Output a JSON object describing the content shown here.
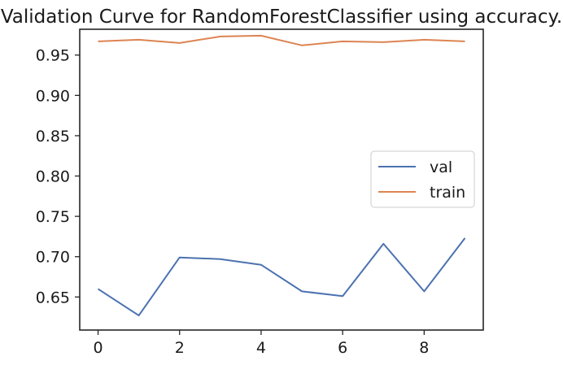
{
  "chart_data": {
    "type": "line",
    "title": "Validation Curve for RandomForestClassifier using accuracy.",
    "xlabel": "",
    "ylabel": "",
    "x": [
      0,
      1,
      2,
      3,
      4,
      5,
      6,
      7,
      8,
      9
    ],
    "xlim": [
      -0.45,
      9.45
    ],
    "ylim": [
      0.609,
      0.982
    ],
    "xticks": [
      0,
      2,
      4,
      6,
      8
    ],
    "yticks": [
      0.65,
      0.7,
      0.75,
      0.8,
      0.85,
      0.9,
      0.95
    ],
    "ytick_labels": [
      "0.65",
      "0.70",
      "0.75",
      "0.80",
      "0.85",
      "0.90",
      "0.95"
    ],
    "grid": false,
    "legend_position": "center-right",
    "series": [
      {
        "name": "val",
        "color": "#4c72b0",
        "values": [
          0.66,
          0.627,
          0.699,
          0.697,
          0.69,
          0.657,
          0.651,
          0.716,
          0.657,
          0.723
        ]
      },
      {
        "name": "train",
        "color": "#dd8452",
        "values": [
          0.967,
          0.969,
          0.965,
          0.973,
          0.974,
          0.962,
          0.967,
          0.966,
          0.969,
          0.967
        ]
      }
    ]
  }
}
